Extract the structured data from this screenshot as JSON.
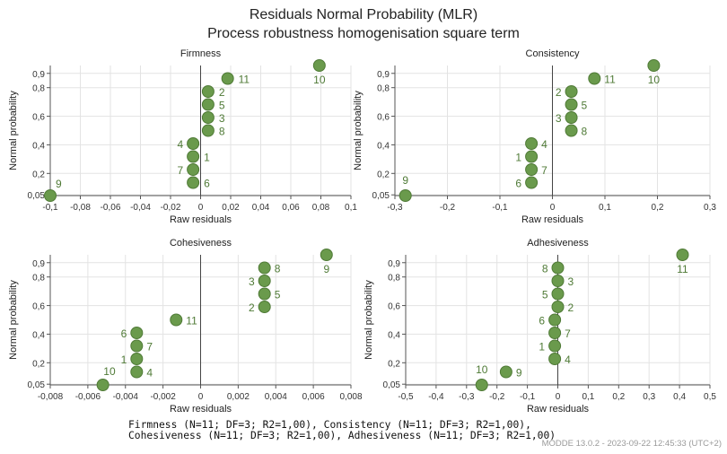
{
  "title": "Residuals Normal Probability (MLR)",
  "subtitle": "Process robustness homogenisation square term",
  "footer": {
    "line1": "Firmness (N=11; DF=3; R2=1,00), Consistency (N=11; DF=3; R2=1,00),",
    "line2": "Cohesiveness (N=11; DF=3; R2=1,00), Adhesiveness (N=11; DF=3; R2=1,00)"
  },
  "stamp": "MODDE 13.0.2 - 2023-09-22 12:45:33 (UTC+2)",
  "colors": {
    "point": "#6a9a4c",
    "point_edge": "#4f7a36",
    "label": "#4f7a36",
    "grid": "#e3e3e3",
    "axis": "#555555"
  },
  "chart_data": [
    {
      "type": "scatter",
      "title": "Firmness",
      "xlabel": "Raw residuals",
      "ylabel": "Normal probability",
      "xlim": [
        -0.1,
        0.1
      ],
      "xticks": [
        -0.1,
        -0.08,
        -0.06,
        -0.04,
        -0.02,
        0,
        0.02,
        0.04,
        0.06,
        0.08,
        0.1
      ],
      "xticklabels": [
        "-0,1",
        "-0,08",
        "-0,06",
        "-0,04",
        "-0,02",
        "0",
        "0,02",
        "0,04",
        "0,06",
        "0,08",
        "0,1"
      ],
      "yticks": [
        0.05,
        0.2,
        0.4,
        0.6,
        0.8,
        0.9
      ],
      "yticklabels": [
        "0,05",
        "0,2",
        "0,4",
        "0,6",
        "0,8",
        "0,9"
      ],
      "grid": true,
      "points": [
        {
          "label": "9",
          "x": -0.1,
          "y": 0.045
        },
        {
          "label": "6",
          "x": -0.005,
          "y": 0.136
        },
        {
          "label": "7",
          "x": -0.005,
          "y": 0.227
        },
        {
          "label": "1",
          "x": -0.005,
          "y": 0.318
        },
        {
          "label": "4",
          "x": -0.005,
          "y": 0.409
        },
        {
          "label": "8",
          "x": 0.005,
          "y": 0.5
        },
        {
          "label": "3",
          "x": 0.005,
          "y": 0.591
        },
        {
          "label": "5",
          "x": 0.005,
          "y": 0.682
        },
        {
          "label": "2",
          "x": 0.005,
          "y": 0.773
        },
        {
          "label": "11",
          "x": 0.018,
          "y": 0.864
        },
        {
          "label": "10",
          "x": 0.079,
          "y": 0.955
        }
      ]
    },
    {
      "type": "scatter",
      "title": "Consistency",
      "xlabel": "Raw residuals",
      "ylabel": "Normal probability",
      "xlim": [
        -0.3,
        0.3
      ],
      "xticks": [
        -0.3,
        -0.2,
        -0.1,
        0,
        0.1,
        0.2,
        0.3
      ],
      "xticklabels": [
        "-0,3",
        "-0,2",
        "-0,1",
        "0",
        "0,1",
        "0,2",
        "0,3"
      ],
      "yticks": [
        0.05,
        0.2,
        0.4,
        0.6,
        0.8,
        0.9
      ],
      "yticklabels": [
        "0,05",
        "0,2",
        "0,4",
        "0,6",
        "0,8",
        "0,9"
      ],
      "grid": true,
      "points": [
        {
          "label": "9",
          "x": -0.28,
          "y": 0.045
        },
        {
          "label": "6",
          "x": -0.04,
          "y": 0.136
        },
        {
          "label": "7",
          "x": -0.04,
          "y": 0.227
        },
        {
          "label": "1",
          "x": -0.04,
          "y": 0.318
        },
        {
          "label": "4",
          "x": -0.04,
          "y": 0.409
        },
        {
          "label": "8",
          "x": 0.036,
          "y": 0.5
        },
        {
          "label": "3",
          "x": 0.036,
          "y": 0.591
        },
        {
          "label": "5",
          "x": 0.036,
          "y": 0.682
        },
        {
          "label": "2",
          "x": 0.036,
          "y": 0.773
        },
        {
          "label": "11",
          "x": 0.08,
          "y": 0.864
        },
        {
          "label": "10",
          "x": 0.193,
          "y": 0.955
        }
      ]
    },
    {
      "type": "scatter",
      "title": "Cohesiveness",
      "xlabel": "Raw residuals",
      "ylabel": "Normal probability",
      "xlim": [
        -0.008,
        0.008
      ],
      "xticks": [
        -0.008,
        -0.006,
        -0.004,
        -0.002,
        0,
        0.002,
        0.004,
        0.006,
        0.008
      ],
      "xticklabels": [
        "-0,008",
        "-0,006",
        "-0,004",
        "-0,002",
        "0",
        "0,002",
        "0,004",
        "0,006",
        "0,008"
      ],
      "yticks": [
        0.05,
        0.2,
        0.4,
        0.6,
        0.8,
        0.9
      ],
      "yticklabels": [
        "0,05",
        "0,2",
        "0,4",
        "0,6",
        "0,8",
        "0,9"
      ],
      "grid": true,
      "points": [
        {
          "label": "10",
          "x": -0.0052,
          "y": 0.045
        },
        {
          "label": "4",
          "x": -0.0034,
          "y": 0.136
        },
        {
          "label": "1",
          "x": -0.0034,
          "y": 0.227
        },
        {
          "label": "7",
          "x": -0.0034,
          "y": 0.318
        },
        {
          "label": "6",
          "x": -0.0034,
          "y": 0.409
        },
        {
          "label": "11",
          "x": -0.0013,
          "y": 0.5
        },
        {
          "label": "2",
          "x": 0.0034,
          "y": 0.591
        },
        {
          "label": "5",
          "x": 0.0034,
          "y": 0.682
        },
        {
          "label": "3",
          "x": 0.0034,
          "y": 0.773
        },
        {
          "label": "8",
          "x": 0.0034,
          "y": 0.864
        },
        {
          "label": "9",
          "x": 0.0067,
          "y": 0.955
        }
      ]
    },
    {
      "type": "scatter",
      "title": "Adhesiveness",
      "xlabel": "Raw residuals",
      "ylabel": "Normal probability",
      "xlim": [
        -0.5,
        0.5
      ],
      "xticks": [
        -0.5,
        -0.4,
        -0.3,
        -0.2,
        -0.1,
        0,
        0.1,
        0.2,
        0.3,
        0.4,
        0.5
      ],
      "xticklabels": [
        "-0,5",
        "-0,4",
        "-0,3",
        "-0,2",
        "-0,1",
        "0",
        "0,1",
        "0,2",
        "0,3",
        "0,4",
        "0,5"
      ],
      "yticks": [
        0.05,
        0.2,
        0.4,
        0.6,
        0.8,
        0.9
      ],
      "yticklabels": [
        "0,05",
        "0,2",
        "0,4",
        "0,6",
        "0,8",
        "0,9"
      ],
      "grid": true,
      "points": [
        {
          "label": "10",
          "x": -0.25,
          "y": 0.045
        },
        {
          "label": "9",
          "x": -0.17,
          "y": 0.136
        },
        {
          "label": "4",
          "x": -0.01,
          "y": 0.227
        },
        {
          "label": "1",
          "x": -0.01,
          "y": 0.318
        },
        {
          "label": "7",
          "x": -0.01,
          "y": 0.409
        },
        {
          "label": "6",
          "x": -0.01,
          "y": 0.5
        },
        {
          "label": "2",
          "x": 0.0,
          "y": 0.591
        },
        {
          "label": "5",
          "x": 0.0,
          "y": 0.682
        },
        {
          "label": "3",
          "x": 0.0,
          "y": 0.773
        },
        {
          "label": "8",
          "x": 0.0,
          "y": 0.864
        },
        {
          "label": "11",
          "x": 0.41,
          "y": 0.955
        }
      ]
    }
  ]
}
